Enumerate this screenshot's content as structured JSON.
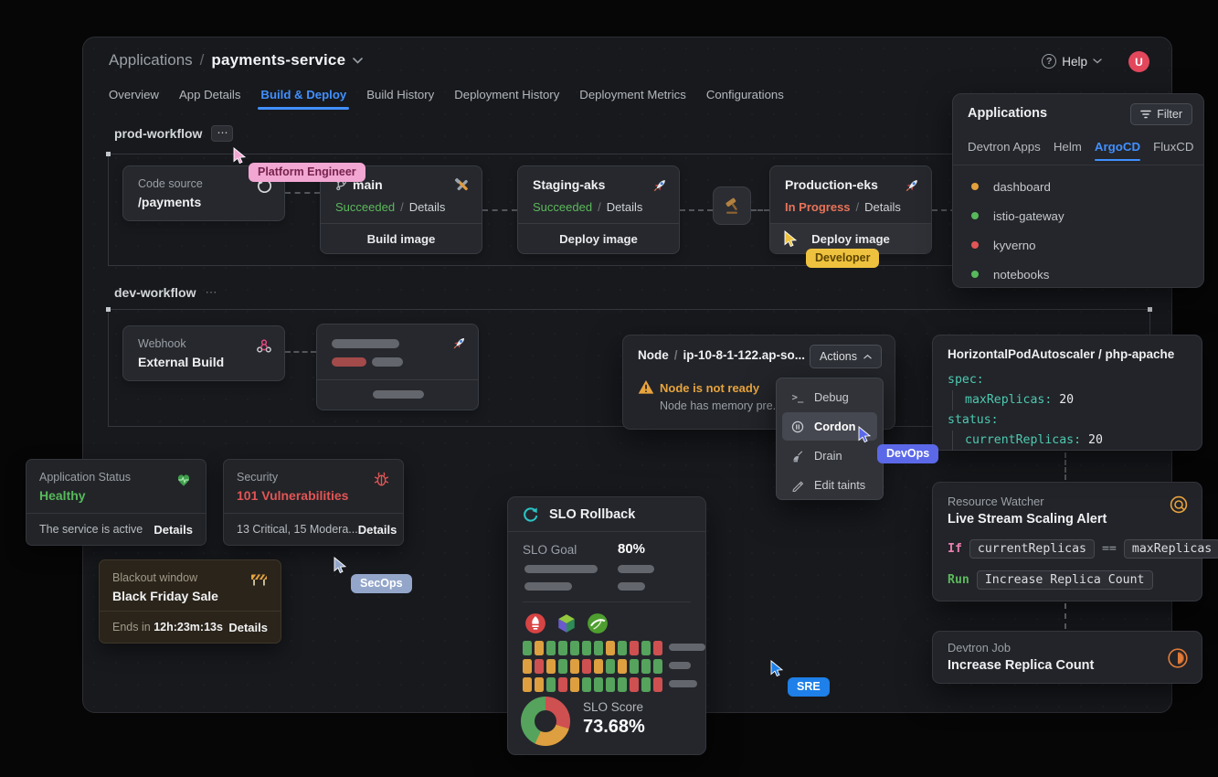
{
  "icons": {
    "ellipsis": "⋯",
    "help_q": "?",
    "terminal_glyph": ">_"
  },
  "glyphs": {
    "slash": "/"
  },
  "header": {
    "breadcrumb_root": "Applications",
    "app_name": "payments-service",
    "help_label": "Help",
    "avatar_initial": "U"
  },
  "tabs": {
    "items": [
      {
        "label": "Overview"
      },
      {
        "label": "App Details"
      },
      {
        "label": "Build & Deploy"
      },
      {
        "label": "Build History"
      },
      {
        "label": "Deployment History"
      },
      {
        "label": "Deployment Metrics"
      },
      {
        "label": "Configurations"
      }
    ]
  },
  "prod_workflow": {
    "title": "prod-workflow",
    "code_source": {
      "label": "Code source",
      "repo": "/payments"
    },
    "build": {
      "branch": "main",
      "status": "Succeeded",
      "details": "Details",
      "action": "Build image"
    },
    "staging": {
      "name": "Staging-aks",
      "status": "Succeeded",
      "details": "Details",
      "action": "Deploy image"
    },
    "production": {
      "name": "Production-eks",
      "status": "In Progress",
      "details": "Details",
      "action": "Deploy image"
    }
  },
  "dev_workflow": {
    "title": "dev-workflow",
    "webhook": {
      "label": "Webhook",
      "name": "External Build"
    }
  },
  "applications_panel": {
    "title": "Applications",
    "filter_label": "Filter",
    "tabs": [
      {
        "label": "Devtron Apps"
      },
      {
        "label": "Helm"
      },
      {
        "label": "ArgoCD"
      },
      {
        "label": "FluxCD"
      }
    ],
    "items": [
      {
        "name": "dashboard",
        "color": "#e2a13c"
      },
      {
        "name": "istio-gateway",
        "color": "#57b85c"
      },
      {
        "name": "kyverno",
        "color": "#e25555"
      },
      {
        "name": "notebooks",
        "color": "#57b85c"
      }
    ]
  },
  "node_panel": {
    "kind": "Node",
    "name": "ip-10-8-1-122.ap-so...",
    "actions_label": "Actions",
    "warning_title": "Node is not ready",
    "warning_detail": "Node has memory pre...",
    "menu": [
      {
        "label": "Debug"
      },
      {
        "label": "Cordon"
      },
      {
        "label": "Drain"
      },
      {
        "label": "Edit taints"
      }
    ]
  },
  "hpa_panel": {
    "title": "HorizontalPodAutoscaler / php-apache",
    "yaml": {
      "l1": "spec:",
      "l2_key": "maxReplicas:",
      "l2_val": "20",
      "l3": "status:",
      "l4_key": "currentReplicas:",
      "l4_val": "20"
    }
  },
  "status_card": {
    "label": "Application Status",
    "value": "Healthy",
    "value_color": "#57b85c",
    "footer": "The service is active",
    "details": "Details"
  },
  "security_card": {
    "label": "Security",
    "value": "101 Vulnerabilities",
    "value_color": "#e25555",
    "footer": "13 Critical, 15 Modera...",
    "details": "Details"
  },
  "blackout_card": {
    "label": "Blackout window",
    "value": "Black Friday Sale",
    "footer_prefix": "Ends in",
    "countdown": "12h:23m:13s",
    "details": "Details"
  },
  "slo_panel": {
    "title": "SLO Rollback",
    "goal_label": "SLO Goal",
    "goal_value": "80%",
    "score_label": "SLO Score",
    "score_value": "73.68%",
    "grid_colors": {
      "g": "#55a35c",
      "o": "#dd9f3f",
      "r": "#cf5050"
    },
    "grid": [
      [
        "g",
        "o",
        "g",
        "g",
        "g",
        "g",
        "g",
        "o",
        "g",
        "r",
        "g",
        "r"
      ],
      [
        "o",
        "r",
        "o",
        "g",
        "o",
        "r",
        "o",
        "g",
        "o",
        "g",
        "g",
        "g"
      ],
      [
        "o",
        "o",
        "g",
        "r",
        "o",
        "g",
        "g",
        "g",
        "g",
        "r",
        "g",
        "r"
      ]
    ],
    "donut_segments": [
      {
        "color": "#cf5050",
        "pct": 30
      },
      {
        "color": "#dd9f3f",
        "pct": 27
      },
      {
        "color": "#55a35c",
        "pct": 43
      }
    ]
  },
  "watcher_panel": {
    "label": "Resource Watcher",
    "title": "Live Stream Scaling Alert",
    "if_keyword": "If",
    "condition_left": "currentReplicas",
    "operator": "==",
    "condition_right": "maxReplicas",
    "run_keyword": "Run",
    "run_target": "Increase Replica Count"
  },
  "job_panel": {
    "label": "Devtron Job",
    "title": "Increase Replica Count"
  },
  "cursors": {
    "platform_engineer": {
      "label": "Platform Engineer",
      "color": "#f2a6d2",
      "text_color": "#76224d"
    },
    "developer": {
      "label": "Developer",
      "color": "#eec23e",
      "text_color": "#5d4300"
    },
    "devops": {
      "label": "DevOps",
      "color": "#5b68e8",
      "text_color": "#ffffff"
    },
    "secops": {
      "label": "SecOps",
      "color": "#93a6ca",
      "text_color": "#ffffff"
    },
    "sre": {
      "label": "SRE",
      "color": "#1e80e8",
      "text_color": "#ffffff"
    }
  }
}
